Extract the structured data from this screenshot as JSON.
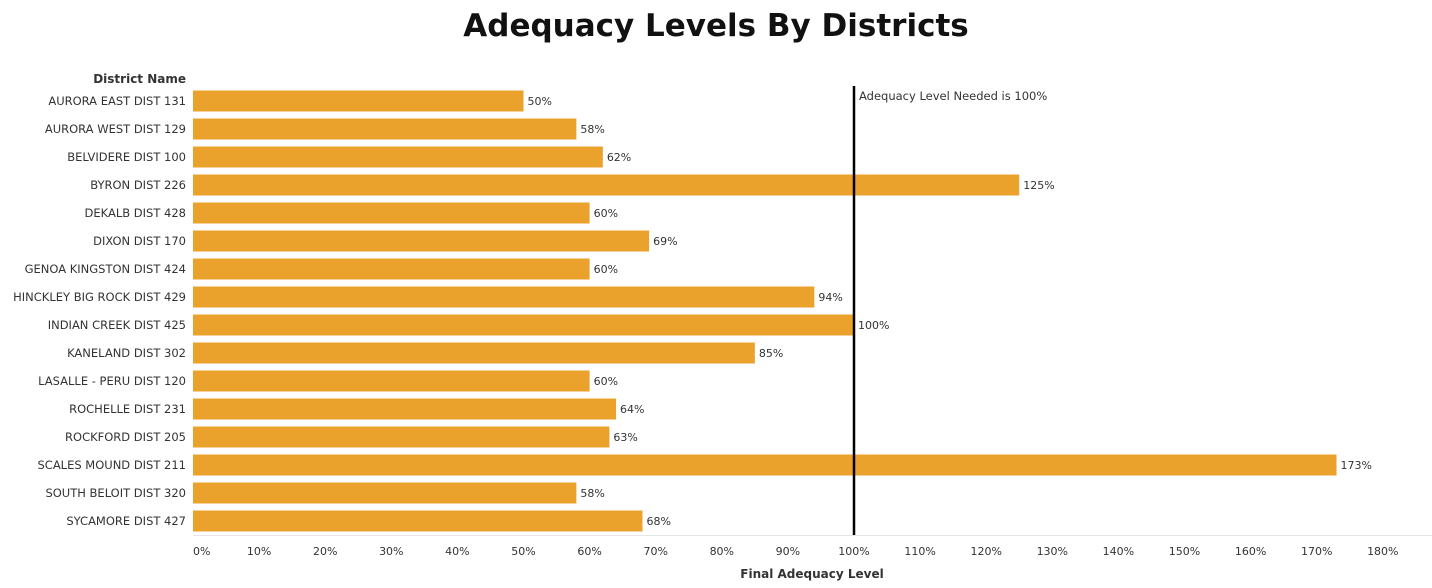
{
  "chart_data": {
    "type": "bar",
    "orientation": "horizontal",
    "title": "Adequacy Levels By Districts",
    "category_header": "District Name",
    "xlabel": "Final Adequacy Level",
    "categories": [
      "AURORA EAST DIST 131",
      "AURORA WEST DIST 129",
      "BELVIDERE DIST 100",
      "BYRON DIST 226",
      "DEKALB DIST 428",
      "DIXON DIST 170",
      "GENOA KINGSTON DIST 424",
      "HINCKLEY BIG ROCK DIST 429",
      "INDIAN CREEK DIST 425",
      "KANELAND DIST 302",
      "LASALLE - PERU DIST 120",
      "ROCHELLE DIST 231",
      "ROCKFORD DIST 205",
      "SCALES MOUND DIST 211",
      "SOUTH BELOIT DIST 320",
      "SYCAMORE DIST 427"
    ],
    "values": [
      50,
      58,
      62,
      125,
      60,
      69,
      60,
      94,
      100,
      85,
      60,
      64,
      63,
      173,
      58,
      68
    ],
    "value_labels": [
      "50%",
      "58%",
      "62%",
      "125%",
      "60%",
      "69%",
      "60%",
      "94%",
      "100%",
      "85%",
      "60%",
      "64%",
      "63%",
      "173%",
      "58%",
      "68%"
    ],
    "xlim": [
      0,
      185
    ],
    "xticks": [
      0,
      10,
      20,
      30,
      40,
      50,
      60,
      70,
      80,
      90,
      100,
      110,
      120,
      130,
      140,
      150,
      160,
      170,
      180
    ],
    "xtick_labels": [
      "0%",
      "10%",
      "20%",
      "30%",
      "40%",
      "50%",
      "60%",
      "70%",
      "80%",
      "90%",
      "100%",
      "110%",
      "120%",
      "130%",
      "140%",
      "150%",
      "160%",
      "170%",
      "180%"
    ],
    "reference_line": {
      "value": 100,
      "label": "Adequacy Level Needed is 100%",
      "color": "#000000"
    },
    "bar_color": "#EBA22D",
    "grid": false,
    "legend": "none"
  }
}
